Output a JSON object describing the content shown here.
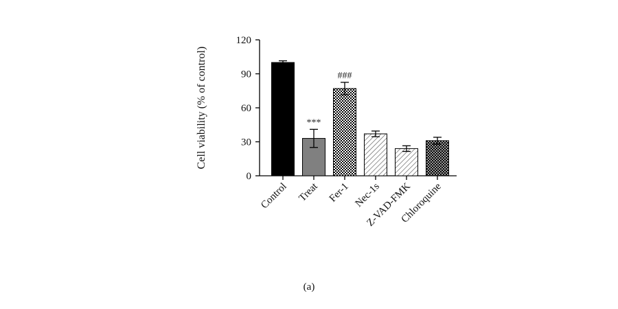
{
  "caption": "(a)",
  "chart_data": {
    "type": "bar",
    "title": "",
    "ylabel": "Cell viability (% of control)",
    "xlabel": "",
    "ylim": [
      0,
      120
    ],
    "yticks": [
      0,
      30,
      60,
      90,
      120
    ],
    "categories": [
      "Control",
      "Treat",
      "Fer-1",
      "Nec-1s",
      "Z-VAD-FMK",
      "Chloroquine"
    ],
    "values": [
      100,
      33,
      77,
      37,
      24,
      31
    ],
    "errors": [
      1.5,
      8,
      5.5,
      2.5,
      2.5,
      3
    ],
    "annotations": [
      "",
      "***",
      "###",
      "",
      "",
      ""
    ],
    "fill_patterns": [
      "solid-black",
      "solid-gray",
      "checker",
      "diagonal-light",
      "diagonal-light",
      "crosshatch-dense"
    ],
    "grid": false,
    "legend": "none"
  }
}
